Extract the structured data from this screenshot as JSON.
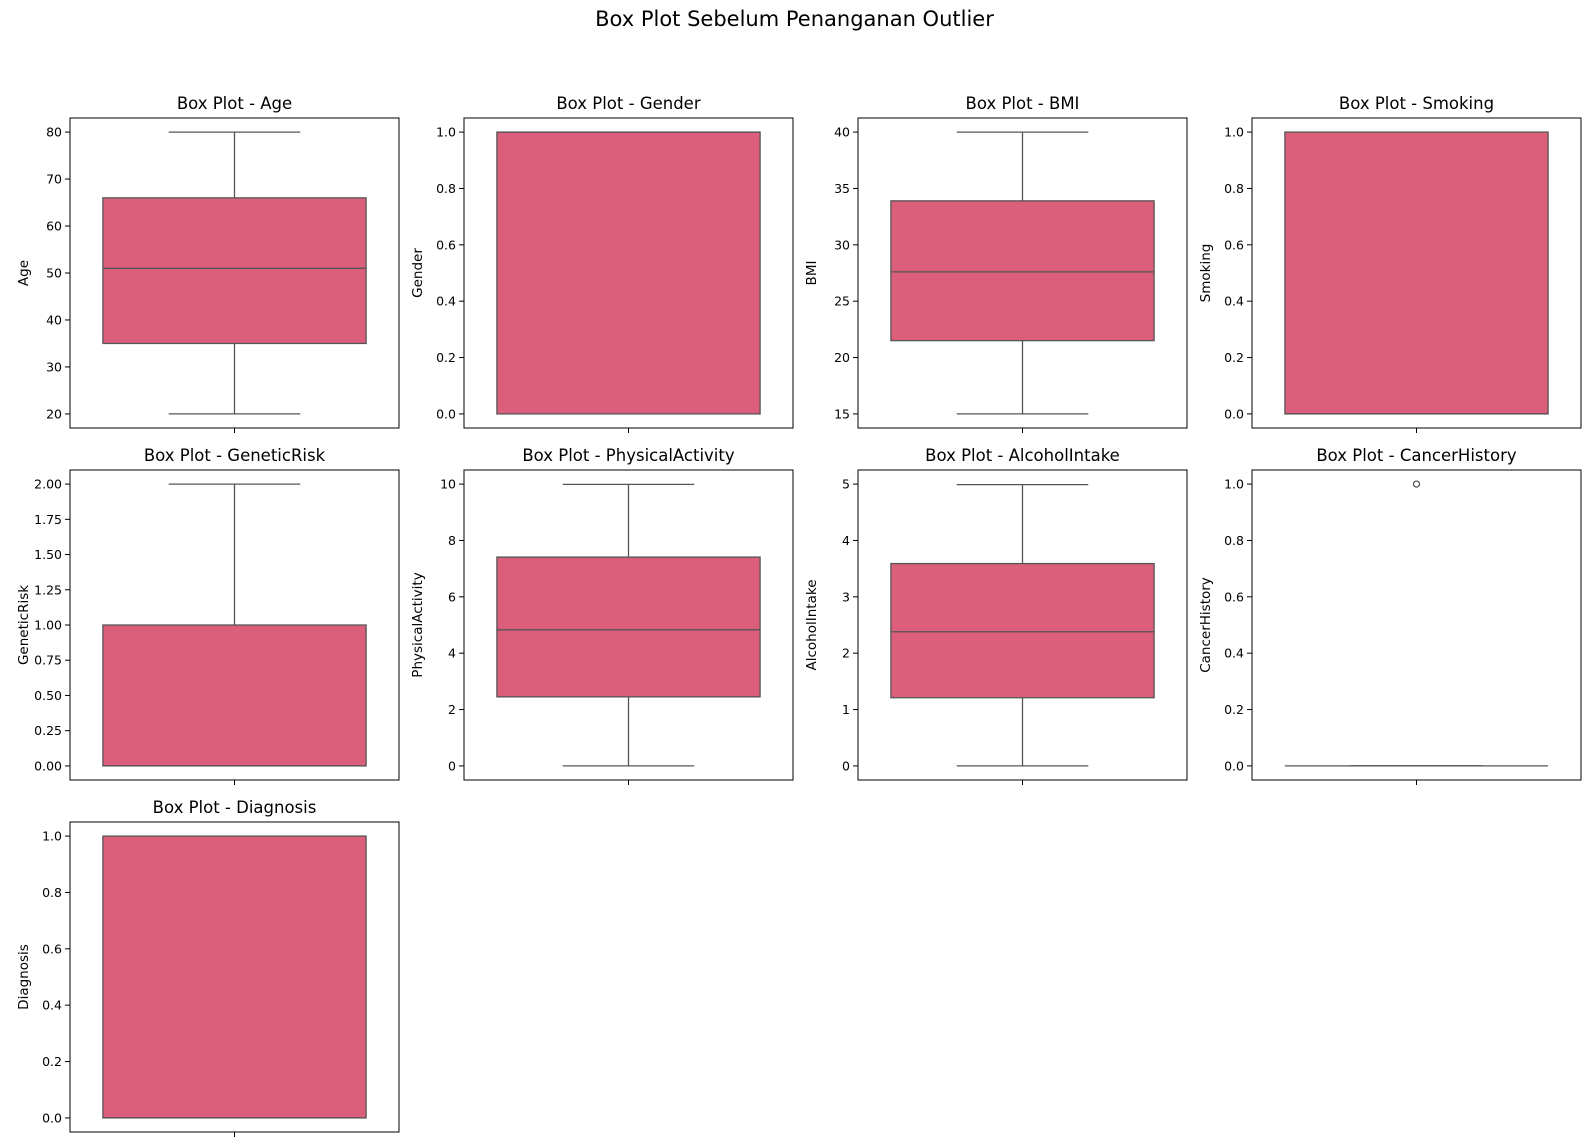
{
  "figure_title": "Box Plot Sebelum Penanganan Outlier",
  "colors": {
    "box_fill": "#db5e7b",
    "line": "#555555"
  },
  "chart_data": [
    {
      "type": "box",
      "title": "Box Plot - Age",
      "ylabel": "Age",
      "ylim": [
        17,
        83
      ],
      "yticks": [
        20,
        30,
        40,
        50,
        60,
        70,
        80
      ],
      "tick_labels": [
        "20",
        "30",
        "40",
        "50",
        "60",
        "70",
        "80"
      ],
      "stats": {
        "whislo": 20,
        "q1": 35,
        "med": 51,
        "q3": 66,
        "whishi": 80,
        "fliers": []
      }
    },
    {
      "type": "box",
      "title": "Box Plot - Gender",
      "ylabel": "Gender",
      "ylim": [
        -0.05,
        1.05
      ],
      "yticks": [
        0,
        0.2,
        0.4,
        0.6,
        0.8,
        1.0
      ],
      "tick_labels": [
        "0.0",
        "0.2",
        "0.4",
        "0.6",
        "0.8",
        "1.0"
      ],
      "stats": {
        "whislo": 0,
        "q1": 0,
        "med": 1,
        "q3": 1,
        "whishi": 1,
        "fliers": []
      }
    },
    {
      "type": "box",
      "title": "Box Plot - BMI",
      "ylabel": "BMI",
      "ylim": [
        13.75,
        41.25
      ],
      "yticks": [
        15,
        20,
        25,
        30,
        35,
        40
      ],
      "tick_labels": [
        "15",
        "20",
        "25",
        "30",
        "35",
        "40"
      ],
      "stats": {
        "whislo": 15,
        "q1": 21.5,
        "med": 27.6,
        "q3": 33.9,
        "whishi": 40,
        "fliers": []
      }
    },
    {
      "type": "box",
      "title": "Box Plot - Smoking",
      "ylabel": "Smoking",
      "ylim": [
        -0.05,
        1.05
      ],
      "yticks": [
        0,
        0.2,
        0.4,
        0.6,
        0.8,
        1.0
      ],
      "tick_labels": [
        "0.0",
        "0.2",
        "0.4",
        "0.6",
        "0.8",
        "1.0"
      ],
      "stats": {
        "whislo": 0,
        "q1": 0,
        "med": 0,
        "q3": 1,
        "whishi": 1,
        "fliers": []
      }
    },
    {
      "type": "box",
      "title": "Box Plot - GeneticRisk",
      "ylabel": "GeneticRisk",
      "ylim": [
        -0.1,
        2.1
      ],
      "yticks": [
        0,
        0.25,
        0.5,
        0.75,
        1.0,
        1.25,
        1.5,
        1.75,
        2.0
      ],
      "tick_labels": [
        "0.00",
        "0.25",
        "0.50",
        "0.75",
        "1.00",
        "1.25",
        "1.50",
        "1.75",
        "2.00"
      ],
      "stats": {
        "whislo": 0,
        "q1": 0,
        "med": 0,
        "q3": 1,
        "whishi": 2,
        "fliers": []
      }
    },
    {
      "type": "box",
      "title": "Box Plot - PhysicalActivity",
      "ylabel": "PhysicalActivity",
      "ylim": [
        -0.5,
        10.5
      ],
      "yticks": [
        0,
        2,
        4,
        6,
        8,
        10
      ],
      "tick_labels": [
        "0",
        "2",
        "4",
        "6",
        "8",
        "10"
      ],
      "stats": {
        "whislo": 0,
        "q1": 2.45,
        "med": 4.83,
        "q3": 7.41,
        "whishi": 9.99,
        "fliers": []
      }
    },
    {
      "type": "box",
      "title": "Box Plot - AlcoholIntake",
      "ylabel": "AlcoholIntake",
      "ylim": [
        -0.25,
        5.25
      ],
      "yticks": [
        0,
        1,
        2,
        3,
        4,
        5
      ],
      "tick_labels": [
        "0",
        "1",
        "2",
        "3",
        "4",
        "5"
      ],
      "stats": {
        "whislo": 0,
        "q1": 1.21,
        "med": 2.38,
        "q3": 3.59,
        "whishi": 4.99,
        "fliers": []
      }
    },
    {
      "type": "box",
      "title": "Box Plot - CancerHistory",
      "ylabel": "CancerHistory",
      "ylim": [
        -0.05,
        1.05
      ],
      "yticks": [
        0,
        0.2,
        0.4,
        0.6,
        0.8,
        1.0
      ],
      "tick_labels": [
        "0.0",
        "0.2",
        "0.4",
        "0.6",
        "0.8",
        "1.0"
      ],
      "stats": {
        "whislo": 0,
        "q1": 0,
        "med": 0,
        "q3": 0,
        "whishi": 0,
        "fliers": [
          1
        ]
      }
    },
    {
      "type": "box",
      "title": "Box Plot - Diagnosis",
      "ylabel": "Diagnosis",
      "ylim": [
        -0.05,
        1.05
      ],
      "yticks": [
        0,
        0.2,
        0.4,
        0.6,
        0.8,
        1.0
      ],
      "tick_labels": [
        "0.0",
        "0.2",
        "0.4",
        "0.6",
        "0.8",
        "1.0"
      ],
      "stats": {
        "whislo": 0,
        "q1": 0,
        "med": 0,
        "q3": 1,
        "whishi": 1,
        "fliers": []
      }
    }
  ]
}
